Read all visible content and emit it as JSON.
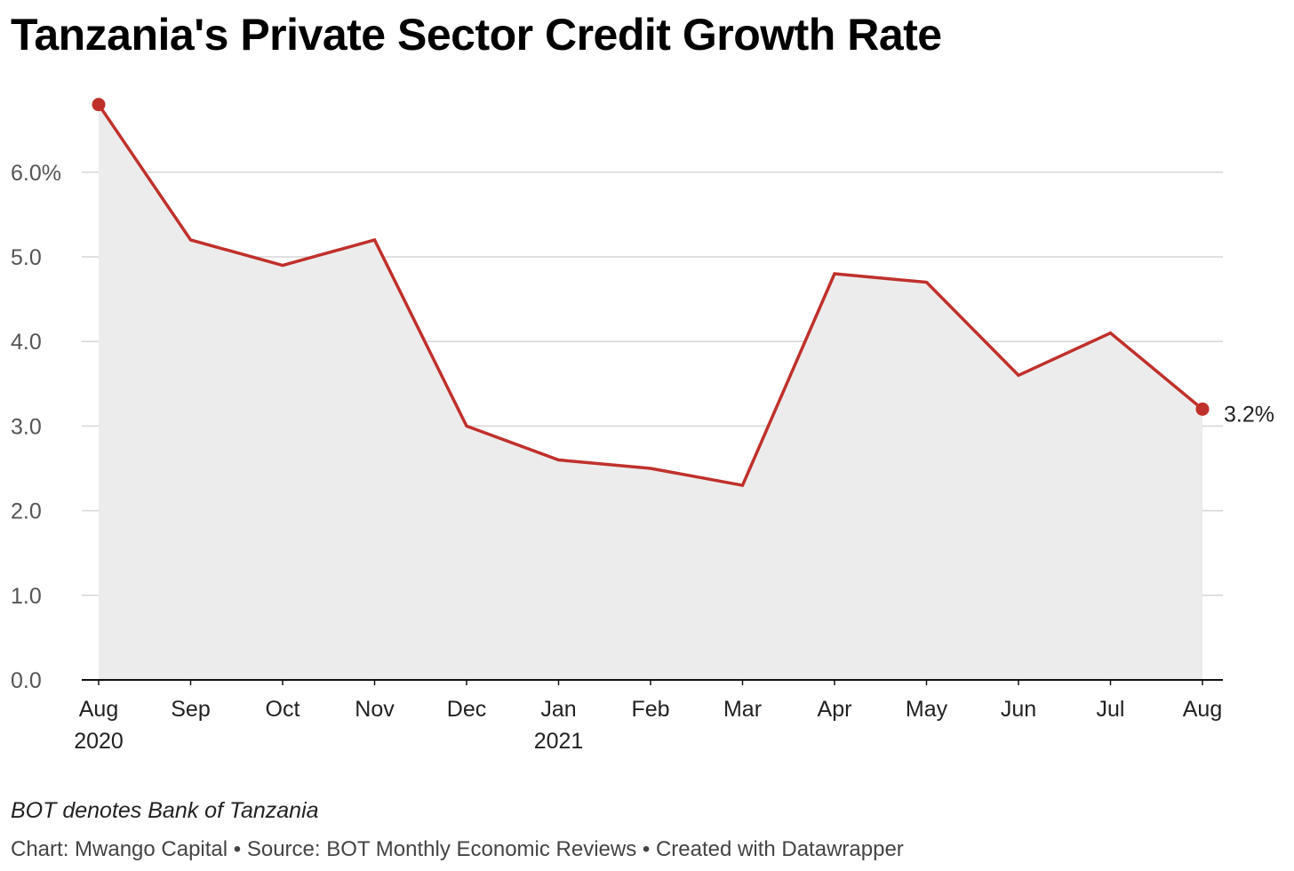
{
  "title": "Tanzania's Private Sector Credit Growth Rate",
  "notes": "BOT denotes Bank of Tanzania",
  "footer": "Chart: Mwango Capital • Source: BOT Monthly Economic Reviews • Created with Datawrapper",
  "colors": {
    "line": "#c0302b",
    "area": "#ececec",
    "grid": "#d6d6d6",
    "axis": "#111111"
  },
  "chart_data": {
    "type": "area",
    "title": "Tanzania's Private Sector Credit Growth Rate",
    "categories": [
      "Aug 2020",
      "Sep 2020",
      "Oct 2020",
      "Nov 2020",
      "Dec 2020",
      "Jan 2021",
      "Feb 2021",
      "Mar 2021",
      "Apr 2021",
      "May 2021",
      "Jun 2021",
      "Jul 2021",
      "Aug 2021"
    ],
    "tick_labels": [
      [
        "Aug",
        "2020"
      ],
      [
        "Sep"
      ],
      [
        "Oct"
      ],
      [
        "Nov"
      ],
      [
        "Dec"
      ],
      [
        "Jan",
        "2021"
      ],
      [
        "Feb"
      ],
      [
        "Mar"
      ],
      [
        "Apr"
      ],
      [
        "May"
      ],
      [
        "Jun"
      ],
      [
        "Jul"
      ],
      [
        "Aug"
      ]
    ],
    "series": [
      {
        "values": [
          6.8,
          5.2,
          4.9,
          5.2,
          3.0,
          2.6,
          2.5,
          2.3,
          4.8,
          4.7,
          3.6,
          4.1,
          3.2
        ]
      }
    ],
    "y_ticks": [
      "0.0",
      "1.0",
      "2.0",
      "3.0",
      "4.0",
      "5.0",
      "6.0%"
    ],
    "ylim": [
      0,
      6.8
    ],
    "end_label": "3.2%",
    "grid": true,
    "xlabel": "",
    "ylabel": ""
  }
}
